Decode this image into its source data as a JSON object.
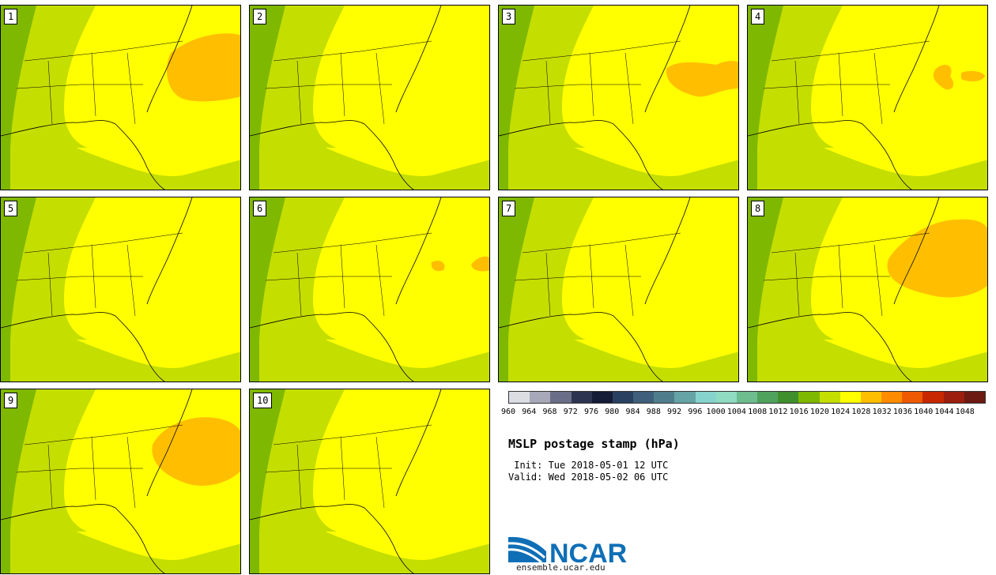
{
  "panels": [
    {
      "label": "1"
    },
    {
      "label": "2"
    },
    {
      "label": "3"
    },
    {
      "label": "4"
    },
    {
      "label": "5"
    },
    {
      "label": "6"
    },
    {
      "label": "7"
    },
    {
      "label": "8"
    },
    {
      "label": "9"
    },
    {
      "label": "10"
    }
  ],
  "colorbar": {
    "colors": [
      "#dcdde3",
      "#a7a9b9",
      "#6b6e88",
      "#2d3450",
      "#141c36",
      "#2a4060",
      "#3f5f7a",
      "#4f7d8b",
      "#65a3a6",
      "#86d3cd",
      "#8fdcc2",
      "#6dbd8f",
      "#4fa25c",
      "#3f8f2c",
      "#7fb800",
      "#c4de00",
      "#ffff00",
      "#ffbf00",
      "#ff8c00",
      "#ee5a00",
      "#c82800",
      "#9b1e0e",
      "#6c1a12"
    ],
    "ticks": [
      "960",
      "964",
      "968",
      "972",
      "976",
      "980",
      "984",
      "988",
      "992",
      "996",
      "1000",
      "1004",
      "1008",
      "1012",
      "1016",
      "1020",
      "1024",
      "1028",
      "1032",
      "1036",
      "1040",
      "1044",
      "1048"
    ]
  },
  "title": "MSLP postage stamp (hPa)",
  "init": " Init: Tue 2018-05-01 12 UTC",
  "valid": "Valid: Wed 2018-05-02 06 UTC",
  "logo_text": "NCAR",
  "logo_url": "ensemble.ucar.edu"
}
